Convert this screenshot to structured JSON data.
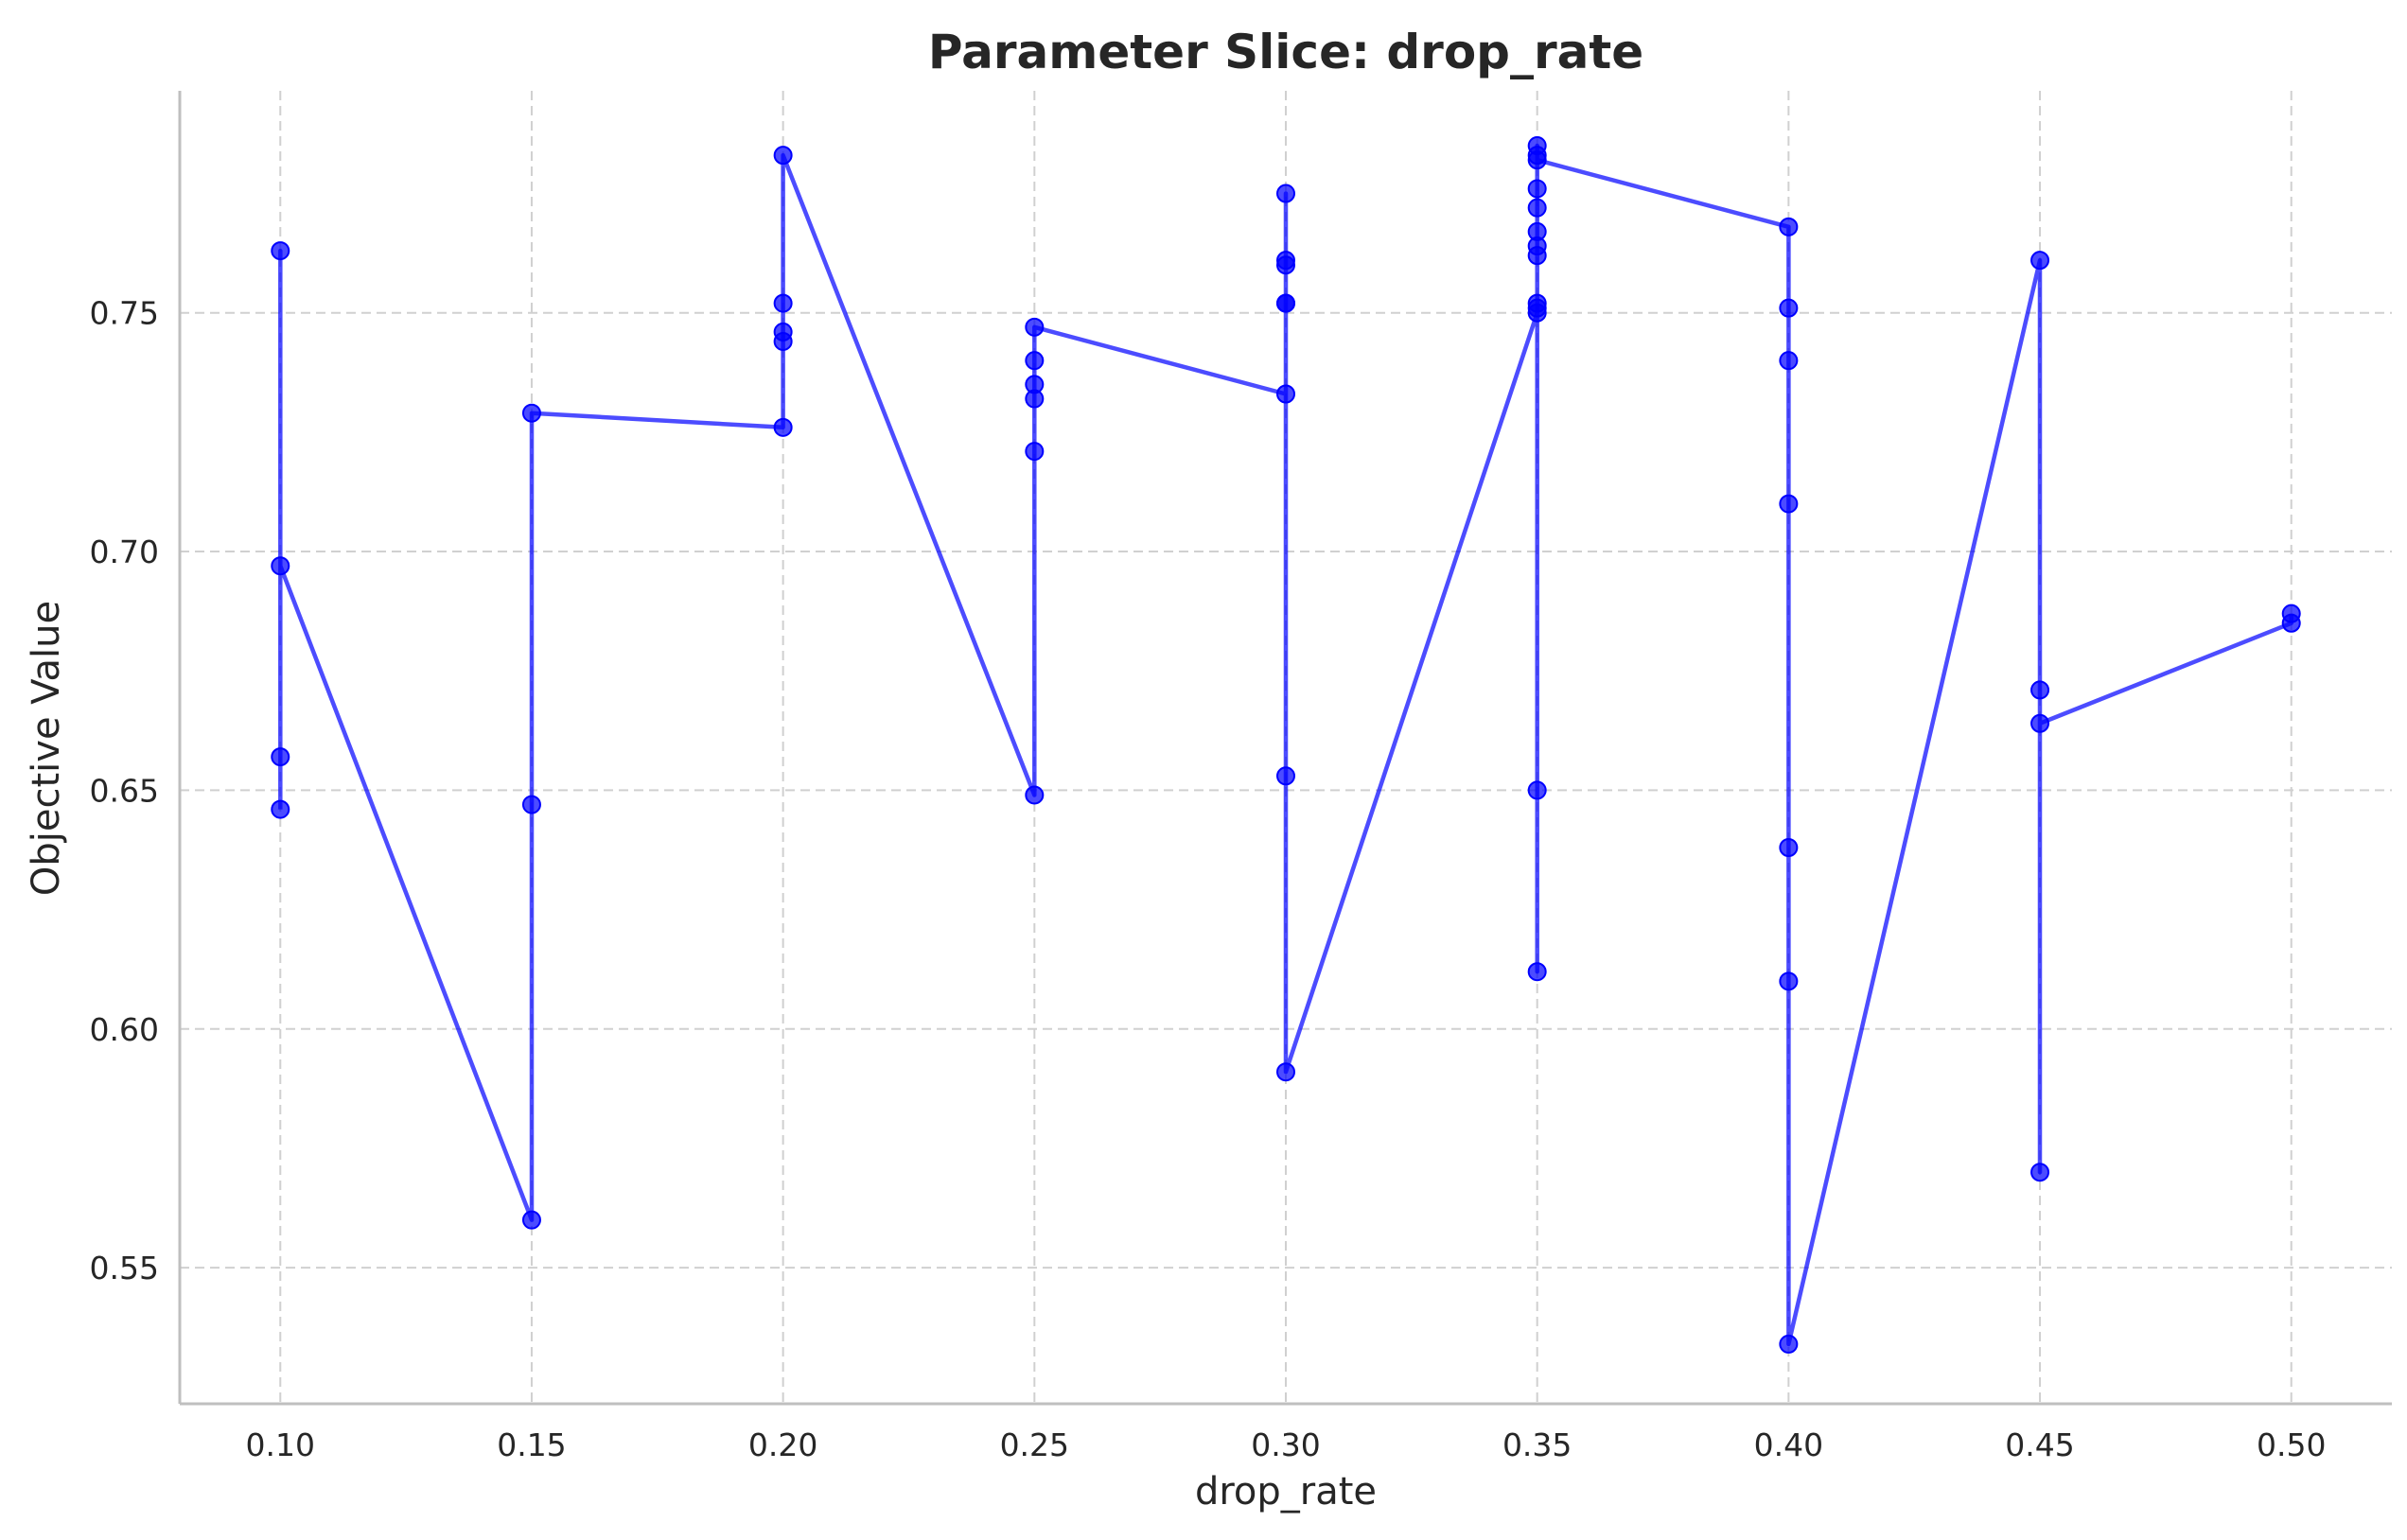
{
  "chart_data": {
    "type": "line",
    "title": "Parameter Slice: drop_rate",
    "xlabel": "drop_rate",
    "ylabel": "Objective Value",
    "xlim": [
      0.08,
      0.52
    ],
    "ylim": [
      0.5215,
      0.7965
    ],
    "x_ticks": [
      0.1,
      0.15,
      0.2,
      0.25,
      0.3,
      0.35,
      0.4,
      0.45,
      0.5
    ],
    "x_tick_labels": [
      "0.10",
      "0.15",
      "0.20",
      "0.25",
      "0.30",
      "0.35",
      "0.40",
      "0.45",
      "0.50"
    ],
    "y_ticks": [
      0.55,
      0.6,
      0.65,
      0.7,
      0.75
    ],
    "y_tick_labels": [
      "0.55",
      "0.60",
      "0.65",
      "0.70",
      "0.75"
    ],
    "grid": true,
    "marker": "circle",
    "series_color": "#0000ff",
    "series": [
      {
        "x": [
          0.1,
          0.1,
          0.1,
          0.1,
          0.15,
          0.15,
          0.15,
          0.2,
          0.2,
          0.2,
          0.2,
          0.2,
          0.25,
          0.25,
          0.25,
          0.25,
          0.25,
          0.25,
          0.3,
          0.3,
          0.3,
          0.3,
          0.3,
          0.3,
          0.3,
          0.3,
          0.35,
          0.35,
          0.35,
          0.35,
          0.35,
          0.35,
          0.35,
          0.35,
          0.35,
          0.35,
          0.35,
          0.35,
          0.35,
          0.4,
          0.4,
          0.4,
          0.4,
          0.4,
          0.4,
          0.4,
          0.45,
          0.45,
          0.45,
          0.45,
          0.5,
          0.5
        ],
        "y": [
          0.646,
          0.657,
          0.763,
          0.697,
          0.56,
          0.647,
          0.729,
          0.726,
          0.744,
          0.746,
          0.752,
          0.783,
          0.649,
          0.721,
          0.732,
          0.735,
          0.74,
          0.747,
          0.733,
          0.752,
          0.752,
          0.76,
          0.761,
          0.775,
          0.653,
          0.591,
          0.75,
          0.751,
          0.612,
          0.65,
          0.752,
          0.762,
          0.764,
          0.767,
          0.772,
          0.776,
          0.785,
          0.783,
          0.782,
          0.768,
          0.751,
          0.74,
          0.71,
          0.638,
          0.61,
          0.534,
          0.761,
          0.57,
          0.671,
          0.664,
          0.685,
          0.687
        ]
      }
    ]
  }
}
